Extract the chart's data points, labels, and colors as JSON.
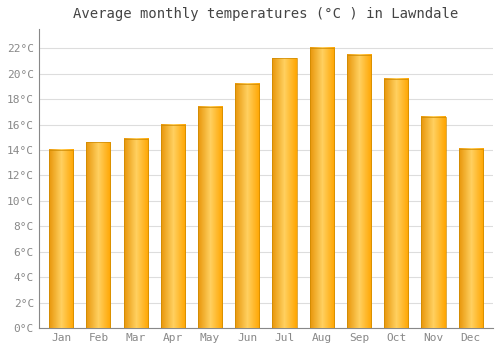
{
  "months": [
    "Jan",
    "Feb",
    "Mar",
    "Apr",
    "May",
    "Jun",
    "Jul",
    "Aug",
    "Sep",
    "Oct",
    "Nov",
    "Dec"
  ],
  "values": [
    14.0,
    14.6,
    14.9,
    16.0,
    17.4,
    19.2,
    21.2,
    22.0,
    21.5,
    19.6,
    16.6,
    14.1
  ],
  "bar_color": "#FFA500",
  "bar_color_light": "#FFD060",
  "bar_color_dark": "#E08000",
  "title": "Average monthly temperatures (°C ) in Lawndale",
  "ylim": [
    0,
    23.5
  ],
  "yticks": [
    0,
    2,
    4,
    6,
    8,
    10,
    12,
    14,
    16,
    18,
    20,
    22
  ],
  "background_color": "#FFFFFF",
  "grid_color": "#DDDDDD",
  "title_fontsize": 10,
  "tick_fontsize": 8,
  "font_color": "#888888",
  "title_color": "#444444"
}
